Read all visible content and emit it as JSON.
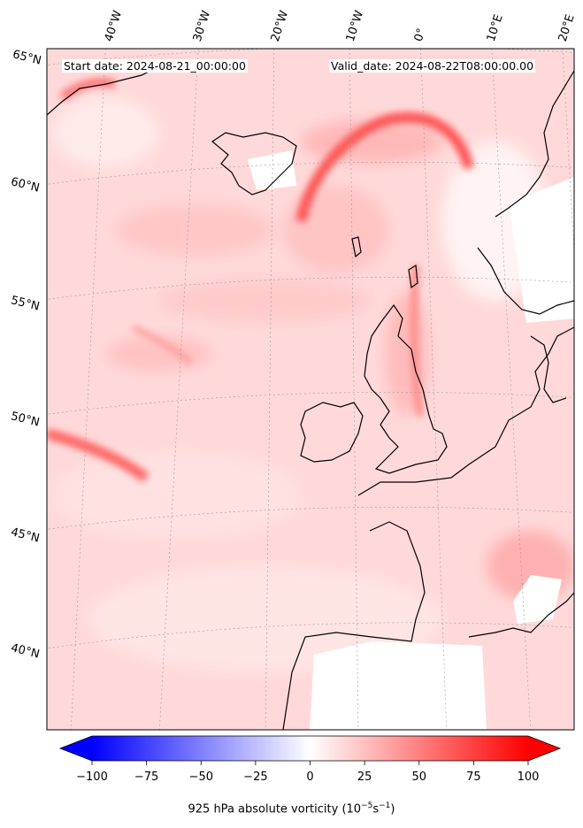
{
  "map": {
    "start_date": "Start date: 2024-08-21_00:00:00",
    "valid_date": "Valid_date: 2024-08-22T08:00:00.00",
    "longitude_labels": [
      "40°W",
      "30°W",
      "20°W",
      "10°W",
      "0°",
      "10°E",
      "20°E"
    ],
    "latitude_labels": [
      "65°N",
      "60°N",
      "55°N",
      "50°N",
      "45°N",
      "40°N"
    ],
    "grid": true
  },
  "colorbar": {
    "title": "925 hPa absolute vorticity (10",
    "title_exp1": "−5",
    "title_mid": "s",
    "title_exp2": "−1",
    "title_end": ")",
    "tick_labels": [
      "−100",
      "−75",
      "−50",
      "−25",
      "0",
      "25",
      "50",
      "75",
      "100"
    ],
    "range": [
      -100,
      100
    ],
    "colormap": "bwr",
    "low_color": "#0000ff",
    "mid_color": "#ffffff",
    "high_color": "#ff0000",
    "extend": "both"
  }
}
